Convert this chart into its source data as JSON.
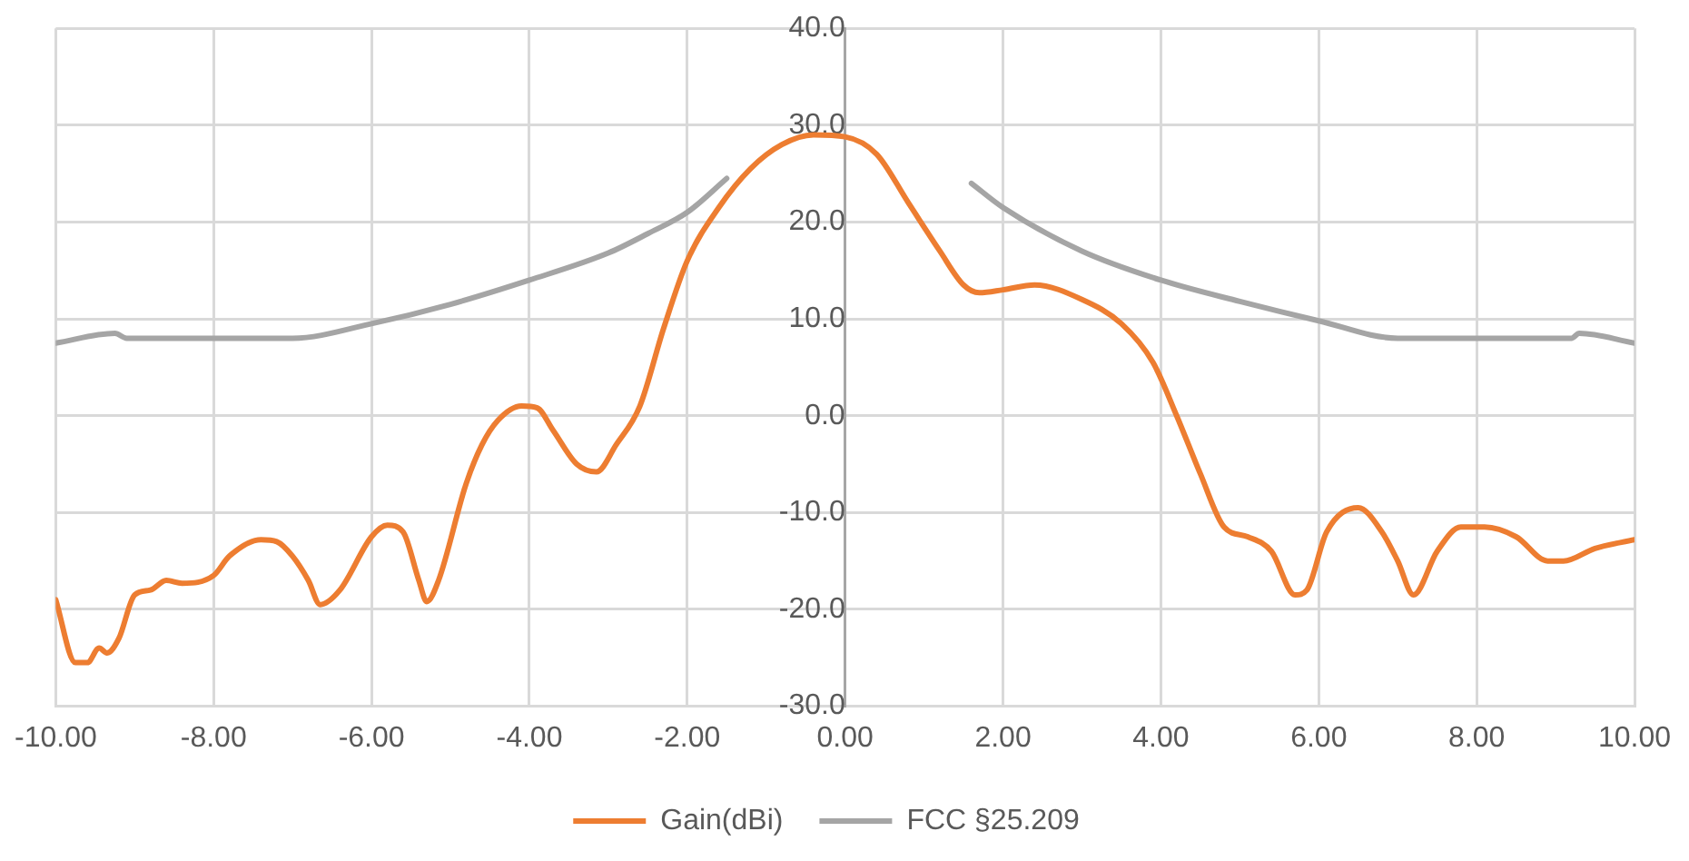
{
  "chart_data": {
    "type": "line",
    "series": [
      {
        "name": "Gain(dBi)",
        "color": "#ed7d31",
        "x": [
          -10,
          -9.75,
          -9.6,
          -9.45,
          -9.35,
          -9.2,
          -9.0,
          -8.8,
          -8.6,
          -8.4,
          -8.0,
          -7.8,
          -7.4,
          -7.2,
          -7.0,
          -6.8,
          -6.65,
          -6.4,
          -6.0,
          -5.8,
          -5.6,
          -5.4,
          -5.3,
          -5.15,
          -4.8,
          -4.6,
          -4.4,
          -4.1,
          -3.9,
          -3.7,
          -3.4,
          -3.15,
          -2.9,
          -2.6,
          -2.3,
          -2.0,
          -1.6,
          -1.2,
          -0.8,
          -0.4,
          0,
          0.4,
          0.8,
          1.2,
          1.5,
          1.7,
          2.0,
          2.4,
          3.0,
          3.5,
          3.9,
          4.2,
          4.5,
          4.8,
          5.1,
          5.4,
          5.7,
          5.85,
          6.1,
          6.5,
          6.8,
          7.0,
          7.2,
          7.5,
          7.8,
          8.1,
          8.5,
          8.9,
          9.1,
          9.5,
          10
        ],
        "values": [
          -19,
          -25.5,
          -25.5,
          -24,
          -24.5,
          -23,
          -18.5,
          -18,
          -17,
          -17.3,
          -16.5,
          -14.5,
          -12.8,
          -13,
          -14.5,
          -17,
          -19.5,
          -18,
          -12.5,
          -11.3,
          -12,
          -17,
          -19.2,
          -17,
          -7,
          -3,
          -0.5,
          1,
          0.8,
          -1.5,
          -5,
          -5.8,
          -3,
          1,
          9,
          16,
          21.5,
          25.5,
          28,
          29,
          28.8,
          27,
          22,
          17,
          13.5,
          12.7,
          13,
          13.5,
          12,
          9.5,
          5.5,
          0,
          -6,
          -11.5,
          -12.5,
          -14,
          -18.5,
          -18,
          -12,
          -9.5,
          -12,
          -15,
          -18.5,
          -14,
          -11.5,
          -11.5,
          -12.5,
          -15,
          -15,
          -13.7,
          -12.8
        ]
      },
      {
        "name": "FCC §25.209",
        "color": "#a5a5a5",
        "x": [
          -10,
          -9.25,
          -9.1,
          -7,
          -6,
          -5,
          -4,
          -3,
          -2.5,
          -2,
          -1.5,
          0,
          1.6,
          2,
          3,
          4,
          5,
          6,
          7,
          9.2,
          9.3,
          10
        ],
        "values": [
          7.5,
          8.5,
          8,
          8,
          9.5,
          11.5,
          14,
          16.8,
          18.8,
          21,
          24.5,
          null,
          24,
          21.5,
          17,
          14,
          11.8,
          9.8,
          8,
          8,
          8.5,
          7.5
        ]
      }
    ],
    "xlim": [
      -10,
      10
    ],
    "xticks": [
      {
        "value": -10,
        "label": "-10.00"
      },
      {
        "value": -8,
        "label": "-8.00"
      },
      {
        "value": -6,
        "label": "-6.00"
      },
      {
        "value": -4,
        "label": "-4.00"
      },
      {
        "value": -2,
        "label": "-2.00"
      },
      {
        "value": 0,
        "label": "0.00"
      },
      {
        "value": 2,
        "label": "2.00"
      },
      {
        "value": 4,
        "label": "4.00"
      },
      {
        "value": 6,
        "label": "6.00"
      },
      {
        "value": 8,
        "label": "8.00"
      },
      {
        "value": 10,
        "label": "10.00"
      }
    ],
    "ylim": [
      -30,
      40
    ],
    "yticks": [
      {
        "value": -30,
        "label": "-30.0"
      },
      {
        "value": -20,
        "label": "-20.0"
      },
      {
        "value": -10,
        "label": "-10.0"
      },
      {
        "value": 0,
        "label": "0.0"
      },
      {
        "value": 10,
        "label": "10.0"
      },
      {
        "value": 20,
        "label": "20.0"
      },
      {
        "value": 30,
        "label": "30.0"
      },
      {
        "value": 40,
        "label": "40.0"
      }
    ],
    "grid": true,
    "legend": "bottom",
    "marker": "none",
    "line_style": "solid"
  }
}
